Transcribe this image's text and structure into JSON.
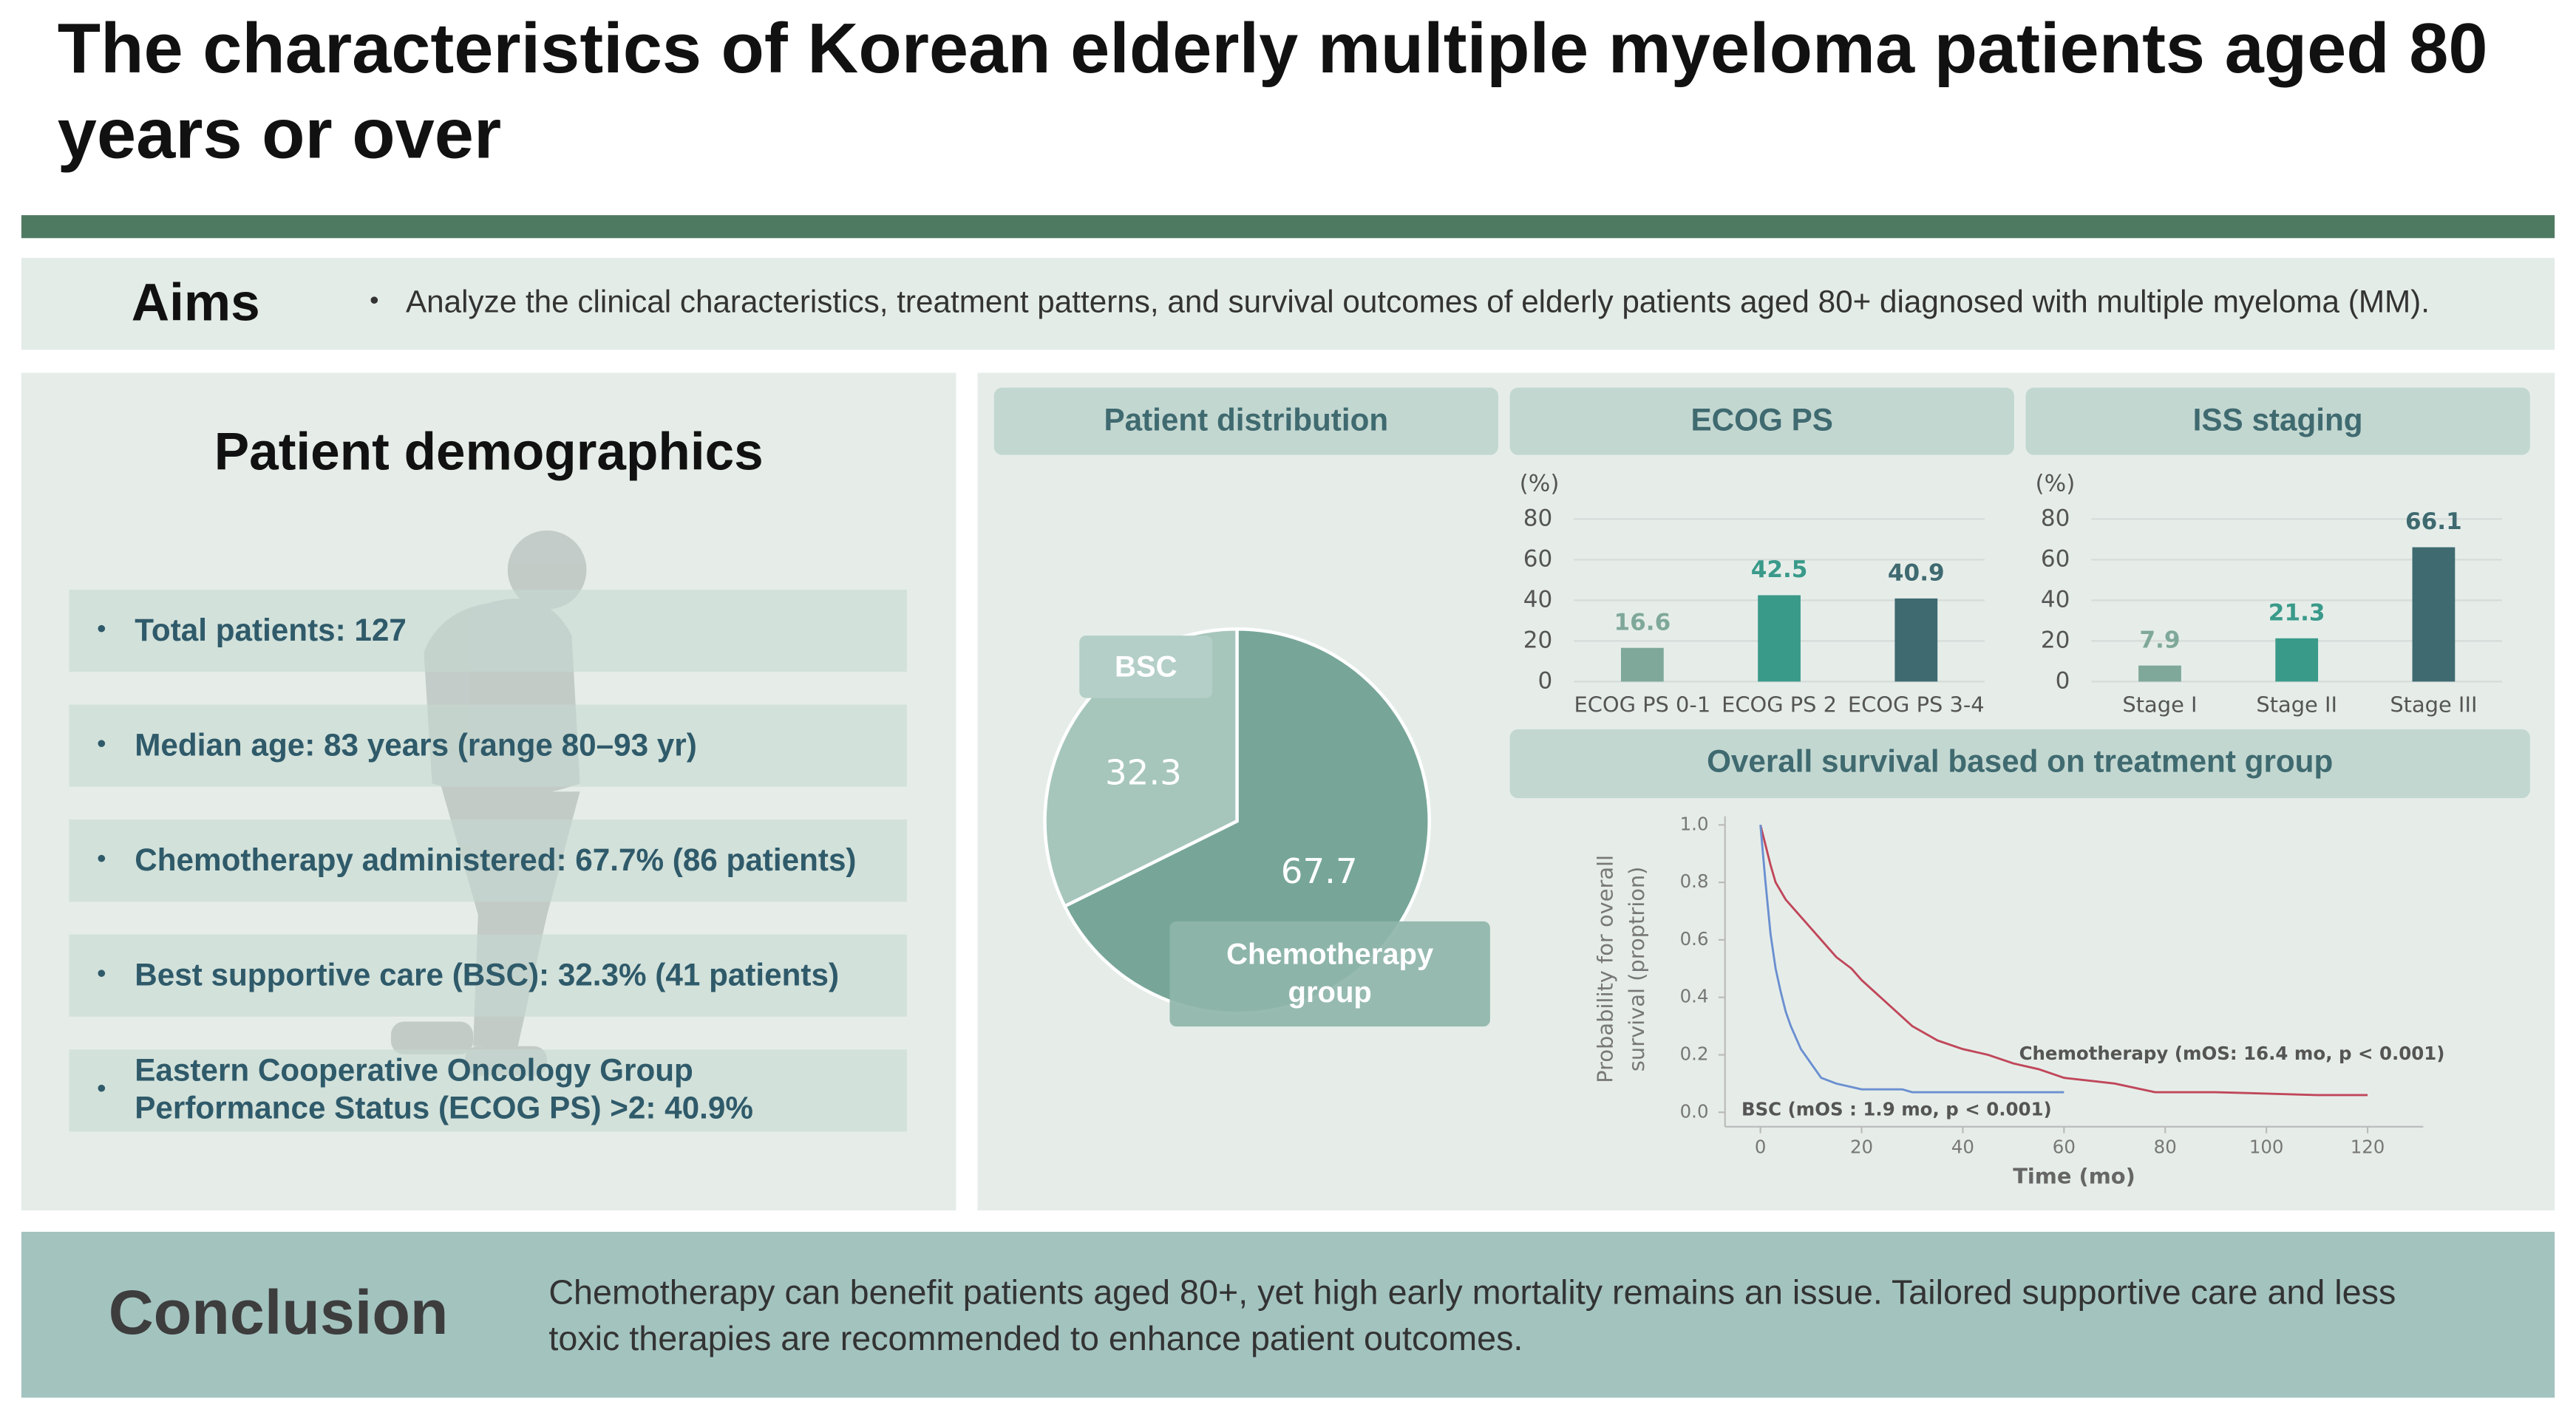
{
  "header": {
    "title": "The characteristics of Korean elderly multiple myeloma patients aged 80 years or over"
  },
  "aims": {
    "label": "Aims",
    "items": [
      "Analyze the clinical characteristics, treatment patterns, and survival outcomes of elderly patients aged 80+ diagnosed with multiple myeloma (MM)."
    ]
  },
  "demographics": {
    "title": "Patient demographics",
    "items": [
      "Total patients: 127",
      "Median age: 83 years (range 80–93 yr)",
      "Chemotherapy administered: 67.7% (86 patients)",
      "Best supportive care (BSC): 32.3% (41 patients)",
      "Eastern Cooperative Oncology Group Performance Status (ECOG PS) >2: 40.9%"
    ]
  },
  "chart_data": [
    {
      "type": "pie",
      "title": "Patient distribution",
      "categories": [
        "BSC",
        "Chemotherapy group"
      ],
      "values": [
        32.3,
        67.7
      ],
      "colors": [
        "#a6c6bc",
        "#77a698"
      ]
    },
    {
      "type": "bar",
      "title": "ECOG PS",
      "y_label": "(%)",
      "categories": [
        "ECOG PS 0-1",
        "ECOG PS 2",
        "ECOG PS 3-4"
      ],
      "values": [
        16.6,
        42.5,
        40.9
      ],
      "colors": [
        "#7fa89a",
        "#3a9a8a",
        "#3e6a70"
      ],
      "ylim": [
        0,
        80
      ],
      "yticks": [
        0,
        20,
        40,
        60,
        80
      ],
      "grid": true
    },
    {
      "type": "bar",
      "title": "ISS staging",
      "y_label": "(%)",
      "categories": [
        "Stage I",
        "Stage II",
        "Stage III"
      ],
      "values": [
        7.9,
        21.3,
        66.1
      ],
      "colors": [
        "#7fa89a",
        "#3a9a8a",
        "#3e6a70"
      ],
      "ylim": [
        0,
        80
      ],
      "yticks": [
        0,
        20,
        40,
        60,
        80
      ],
      "grid": true
    },
    {
      "type": "line",
      "title": "Overall survival based on treatment group",
      "x_label": "Time (mo)",
      "y_label": [
        "Probability for overall",
        "survival (proptrion)"
      ],
      "series": [
        {
          "label": "Chemotherapy (mOS: 16.4 mo, p < 0.001)",
          "color": "#c0475a",
          "x": [
            0,
            1,
            2,
            3,
            5,
            7,
            10,
            12,
            15,
            18,
            20,
            25,
            30,
            35,
            40,
            45,
            50,
            55,
            60,
            65,
            70,
            78,
            90,
            110,
            120
          ],
          "values": [
            1.0,
            0.93,
            0.86,
            0.8,
            0.74,
            0.7,
            0.64,
            0.6,
            0.54,
            0.5,
            0.46,
            0.38,
            0.3,
            0.25,
            0.22,
            0.2,
            0.17,
            0.15,
            0.12,
            0.11,
            0.1,
            0.07,
            0.07,
            0.06,
            0.06
          ]
        },
        {
          "label": "BSC (mOS : 1.9 mo, p < 0.001)",
          "color": "#6b8fd0",
          "x": [
            0,
            1,
            2,
            3,
            4,
            5,
            6,
            8,
            10,
            12,
            15,
            20,
            28,
            30,
            40,
            50,
            60
          ],
          "values": [
            1.0,
            0.8,
            0.62,
            0.5,
            0.42,
            0.35,
            0.3,
            0.22,
            0.17,
            0.12,
            0.1,
            0.08,
            0.08,
            0.07,
            0.07,
            0.07,
            0.07
          ]
        }
      ],
      "xlim": [
        -7,
        131
      ],
      "xticks": [
        0,
        20,
        40,
        60,
        80,
        100,
        120
      ],
      "ylim": [
        -0.05,
        1.03
      ],
      "yticks": [
        {
          "value": 0,
          "label": "0.0"
        },
        0.2,
        0.4,
        0.6,
        0.8,
        {
          "value": 1,
          "label": "1.0"
        }
      ]
    }
  ],
  "conclusion": {
    "label": "Conclusion",
    "text": "Chemotherapy can benefit patients aged 80+, yet high early mortality remains an issue. Tailored supportive care and less toxic therapies are recommended to enhance patient outcomes."
  }
}
